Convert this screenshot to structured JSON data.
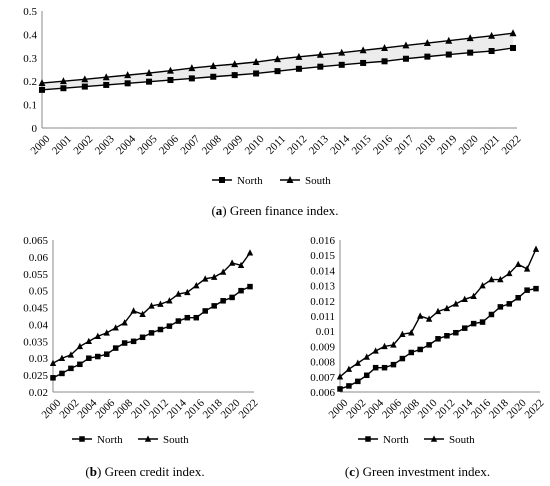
{
  "chart_data": [
    {
      "type": "line",
      "caption_letter": "a",
      "caption_text": "Green finance index.",
      "x": [
        "2000",
        "2001",
        "2002",
        "2003",
        "2004",
        "2005",
        "2006",
        "2007",
        "2008",
        "2009",
        "2010",
        "2011",
        "2012",
        "2013",
        "2014",
        "2015",
        "2016",
        "2017",
        "2018",
        "2019",
        "2020",
        "2021",
        "2022"
      ],
      "x_tick_labels": [
        "2000",
        "2001",
        "2002",
        "2003",
        "2004",
        "2005",
        "2006",
        "2007",
        "2008",
        "2009",
        "2010",
        "2011",
        "2012",
        "2013",
        "2014",
        "2015",
        "2016",
        "2017",
        "2018",
        "2019",
        "2020",
        "2021",
        "2022"
      ],
      "ylim": [
        0,
        0.5
      ],
      "y_ticks": [
        0,
        0.1,
        0.2,
        0.3,
        0.4,
        0.5
      ],
      "y_tick_labels": [
        "0",
        "0.1",
        "0.2",
        "0.3",
        "0.4",
        "0.5"
      ],
      "grid": false,
      "band_between_series": true,
      "legend": "bottom",
      "series": [
        {
          "name": "North",
          "marker": "square",
          "values": [
            0.163,
            0.17,
            0.177,
            0.184,
            0.191,
            0.198,
            0.205,
            0.212,
            0.219,
            0.226,
            0.233,
            0.243,
            0.253,
            0.262,
            0.27,
            0.278,
            0.285,
            0.296,
            0.305,
            0.314,
            0.322,
            0.329,
            0.342
          ]
        },
        {
          "name": "South",
          "marker": "triangle",
          "values": [
            0.192,
            0.2,
            0.208,
            0.217,
            0.226,
            0.235,
            0.245,
            0.256,
            0.265,
            0.273,
            0.282,
            0.294,
            0.304,
            0.313,
            0.322,
            0.332,
            0.342,
            0.353,
            0.363,
            0.373,
            0.384,
            0.394,
            0.405
          ]
        }
      ]
    },
    {
      "type": "line",
      "caption_letter": "b",
      "caption_text": "Green credit index.",
      "x": [
        "2000",
        "2001",
        "2002",
        "2003",
        "2004",
        "2005",
        "2006",
        "2007",
        "2008",
        "2009",
        "2010",
        "2011",
        "2012",
        "2013",
        "2014",
        "2015",
        "2016",
        "2017",
        "2018",
        "2019",
        "2020",
        "2021",
        "2022"
      ],
      "x_tick_labels": [
        "2000",
        "2002",
        "2004",
        "2006",
        "2008",
        "2010",
        "2012",
        "2014",
        "2016",
        "2018",
        "2020",
        "2022"
      ],
      "ylim": [
        0.02,
        0.065
      ],
      "y_ticks": [
        0.02,
        0.025,
        0.03,
        0.035,
        0.04,
        0.045,
        0.05,
        0.055,
        0.06,
        0.065
      ],
      "y_tick_labels": [
        "0.02",
        "0.025",
        "0.03",
        "0.035",
        "0.04",
        "0.045",
        "0.05",
        "0.055",
        "0.06",
        "0.065"
      ],
      "grid": false,
      "band_between_series": false,
      "legend": "bottom",
      "series": [
        {
          "name": "North",
          "marker": "square",
          "values": [
            0.0242,
            0.0255,
            0.027,
            0.0282,
            0.03,
            0.0305,
            0.0312,
            0.033,
            0.0345,
            0.035,
            0.0362,
            0.0375,
            0.0385,
            0.0395,
            0.041,
            0.042,
            0.042,
            0.044,
            0.0455,
            0.047,
            0.048,
            0.05,
            0.0512
          ]
        },
        {
          "name": "South",
          "marker": "triangle",
          "values": [
            0.0285,
            0.03,
            0.031,
            0.0335,
            0.035,
            0.0365,
            0.0375,
            0.039,
            0.0405,
            0.044,
            0.043,
            0.0455,
            0.046,
            0.047,
            0.049,
            0.0495,
            0.0515,
            0.0535,
            0.054,
            0.0555,
            0.0582,
            0.0575,
            0.0612
          ]
        }
      ]
    },
    {
      "type": "line",
      "caption_letter": "c",
      "caption_text": "Green investment index.",
      "x": [
        "2000",
        "2001",
        "2002",
        "2003",
        "2004",
        "2005",
        "2006",
        "2007",
        "2008",
        "2009",
        "2010",
        "2011",
        "2012",
        "2013",
        "2014",
        "2015",
        "2016",
        "2017",
        "2018",
        "2019",
        "2020",
        "2021",
        "2022"
      ],
      "x_tick_labels": [
        "2000",
        "2002",
        "2004",
        "2006",
        "2008",
        "2010",
        "2012",
        "2014",
        "2016",
        "2018",
        "2020",
        "2022"
      ],
      "ylim": [
        0.006,
        0.016
      ],
      "y_ticks": [
        0.006,
        0.007,
        0.008,
        0.009,
        0.01,
        0.011,
        0.012,
        0.013,
        0.014,
        0.015,
        0.016
      ],
      "y_tick_labels": [
        "0.006",
        "0.007",
        "0.008",
        "0.009",
        "0.01",
        "0.011",
        "0.012",
        "0.013",
        "0.014",
        "0.015",
        "0.016"
      ],
      "grid": false,
      "band_between_series": false,
      "legend": "bottom",
      "series": [
        {
          "name": "North",
          "marker": "square",
          "values": [
            0.0062,
            0.0064,
            0.0067,
            0.0071,
            0.0076,
            0.0076,
            0.0078,
            0.0082,
            0.0086,
            0.0088,
            0.0091,
            0.0095,
            0.0097,
            0.0099,
            0.0102,
            0.0105,
            0.0106,
            0.0111,
            0.0116,
            0.0118,
            0.0122,
            0.0127,
            0.0128
          ]
        },
        {
          "name": "South",
          "marker": "triangle",
          "values": [
            0.007,
            0.0075,
            0.0079,
            0.0083,
            0.0087,
            0.009,
            0.0091,
            0.0098,
            0.0099,
            0.011,
            0.0108,
            0.0113,
            0.0115,
            0.0118,
            0.0121,
            0.0123,
            0.013,
            0.0134,
            0.0134,
            0.0138,
            0.0144,
            0.0141,
            0.0154
          ]
        }
      ]
    }
  ]
}
